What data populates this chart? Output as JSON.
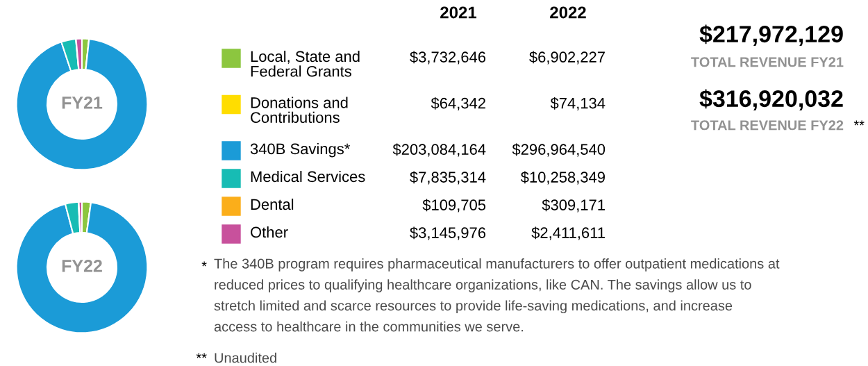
{
  "chart_data": {
    "type": "donut",
    "legend": "right",
    "categories": [
      "Local, State and Federal Grants",
      "Donations and Contributions",
      "340B Savings*",
      "Medical Services",
      "Dental",
      "Other"
    ],
    "colors": [
      "#8cc63f",
      "#ffdd00",
      "#1b9bd7",
      "#17bcb4",
      "#fbae1a",
      "#c8519c"
    ],
    "series": [
      {
        "name": "FY21",
        "values": [
          3732646,
          64342,
          203084164,
          7835314,
          109705,
          3145976
        ],
        "value_labels": [
          "$3,732,646",
          "$64,342",
          "$203,084,164",
          "$7,835,314",
          "$109,705",
          "$3,145,976"
        ]
      },
      {
        "name": "FY22",
        "values": [
          6902227,
          74134,
          296964540,
          10258349,
          309171,
          2411611
        ],
        "value_labels": [
          "$6,902,227",
          "$74,134",
          "$296,964,540",
          "$10,258,349",
          "$309,171",
          "$2,411,611"
        ]
      }
    ],
    "annotations": [
      "2021",
      "2022",
      "$217,972,129",
      "TOTAL REVENUE FY21",
      "$316,920,032",
      "TOTAL REVENUE FY22",
      "**",
      "*",
      "The 340B program requires pharmaceutical manufacturers to offer outpatient medications at reduced prices to qualifying healthcare organizations, like CAN. The savings allow us to stretch limited and scarce resources to provide life-saving medications, and increase access to healthcare in the communities we serve.",
      "**",
      "Unaudited"
    ]
  }
}
